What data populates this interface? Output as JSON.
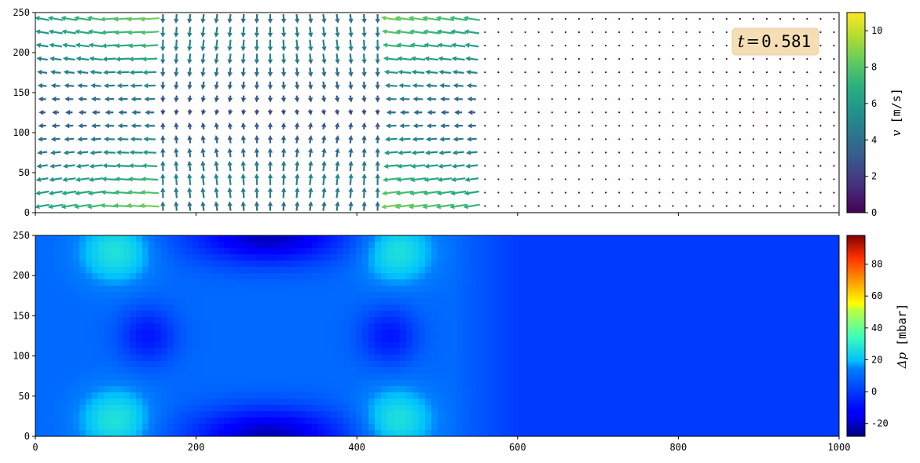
{
  "chart_data": [
    {
      "type": "quiver",
      "panel": "velocity",
      "xlim": [
        0,
        1000
      ],
      "ylim": [
        0,
        250
      ],
      "x_ticks": [
        "0",
        "200",
        "400",
        "600",
        "800",
        "1000"
      ],
      "y_ticks": [
        "0",
        "50",
        "100",
        "150",
        "200",
        "250"
      ],
      "x_tick_labels_visible": false,
      "annotation": {
        "symbol": "t",
        "equals": "=",
        "value": "0.581"
      },
      "annotation_box_color": "#f5deb3",
      "colorbar": {
        "label_symbol": "v",
        "label_unit": "[m/s]",
        "colormap": "viridis",
        "range": [
          0,
          11
        ],
        "ticks": [
          "0",
          "2",
          "4",
          "6",
          "8",
          "10"
        ]
      },
      "field": {
        "description_units": "velocity magnitude in m/s",
        "grid_spacing": [
          16.7,
          16.7
        ],
        "active_region_x": [
          0,
          540
        ],
        "max_speed": 10.5
      }
    },
    {
      "type": "heatmap",
      "panel": "pressure",
      "xlim": [
        0,
        1000
      ],
      "ylim": [
        0,
        250
      ],
      "x_ticks": [
        "0",
        "200",
        "400",
        "600",
        "800",
        "1000"
      ],
      "y_ticks": [
        "0",
        "50",
        "100",
        "150",
        "200",
        "250"
      ],
      "colorbar": {
        "label_symbol": "Δp",
        "label_unit": "[mbar]",
        "colormap": "jet",
        "range": [
          -28,
          98
        ],
        "ticks": [
          "-20",
          "0",
          "20",
          "40",
          "60",
          "80"
        ]
      },
      "field": {
        "background_value": 0,
        "hotspots": [
          {
            "x": 100,
            "y": 230,
            "value": 28
          },
          {
            "x": 100,
            "y": 20,
            "value": 28
          },
          {
            "x": 450,
            "y": 230,
            "value": 28
          },
          {
            "x": 450,
            "y": 20,
            "value": 28
          }
        ],
        "lows": [
          {
            "x": 290,
            "y": 250,
            "value": -22
          },
          {
            "x": 290,
            "y": 0,
            "value": -22
          },
          {
            "x": 140,
            "y": 125,
            "value": -8
          },
          {
            "x": 440,
            "y": 125,
            "value": -8
          }
        ]
      }
    }
  ]
}
